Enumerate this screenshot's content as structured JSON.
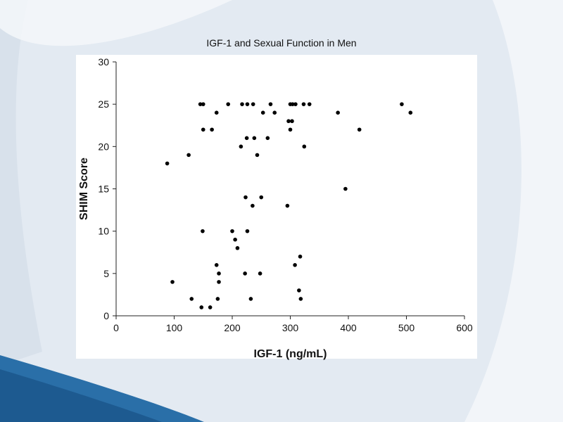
{
  "chart_data": {
    "type": "scatter",
    "title": "IGF-1 and Sexual Function in Men",
    "xlabel": "IGF-1 (ng/mL)",
    "ylabel": "SHIM Score",
    "xlim": [
      0,
      600
    ],
    "ylim": [
      0,
      30
    ],
    "xticks": [
      "0",
      "100",
      "200",
      "300",
      "400",
      "500",
      "600"
    ],
    "yticks": [
      "0",
      "5",
      "10",
      "15",
      "20",
      "25",
      "30"
    ],
    "grid": false,
    "points": [
      {
        "x": 145,
        "y": 25
      },
      {
        "x": 150,
        "y": 25
      },
      {
        "x": 193,
        "y": 25
      },
      {
        "x": 217,
        "y": 25
      },
      {
        "x": 226,
        "y": 25
      },
      {
        "x": 236,
        "y": 25
      },
      {
        "x": 266,
        "y": 25
      },
      {
        "x": 300,
        "y": 25
      },
      {
        "x": 304,
        "y": 25
      },
      {
        "x": 309,
        "y": 25
      },
      {
        "x": 323,
        "y": 25
      },
      {
        "x": 333,
        "y": 25
      },
      {
        "x": 492,
        "y": 25
      },
      {
        "x": 173,
        "y": 24
      },
      {
        "x": 253,
        "y": 24
      },
      {
        "x": 273,
        "y": 24
      },
      {
        "x": 382,
        "y": 24
      },
      {
        "x": 507,
        "y": 24
      },
      {
        "x": 297,
        "y": 23
      },
      {
        "x": 303,
        "y": 23
      },
      {
        "x": 150,
        "y": 22
      },
      {
        "x": 165,
        "y": 22
      },
      {
        "x": 300,
        "y": 22
      },
      {
        "x": 419,
        "y": 22
      },
      {
        "x": 225,
        "y": 21
      },
      {
        "x": 238,
        "y": 21
      },
      {
        "x": 261,
        "y": 21
      },
      {
        "x": 215,
        "y": 20
      },
      {
        "x": 324,
        "y": 20
      },
      {
        "x": 125,
        "y": 19
      },
      {
        "x": 243,
        "y": 19
      },
      {
        "x": 88,
        "y": 18
      },
      {
        "x": 395,
        "y": 15
      },
      {
        "x": 223,
        "y": 14
      },
      {
        "x": 250,
        "y": 14
      },
      {
        "x": 235,
        "y": 13
      },
      {
        "x": 295,
        "y": 13
      },
      {
        "x": 149,
        "y": 10
      },
      {
        "x": 200,
        "y": 10
      },
      {
        "x": 226,
        "y": 10
      },
      {
        "x": 205,
        "y": 9
      },
      {
        "x": 209,
        "y": 8
      },
      {
        "x": 317,
        "y": 7
      },
      {
        "x": 173,
        "y": 6
      },
      {
        "x": 308,
        "y": 6
      },
      {
        "x": 177,
        "y": 5
      },
      {
        "x": 222,
        "y": 5
      },
      {
        "x": 248,
        "y": 5
      },
      {
        "x": 97,
        "y": 4
      },
      {
        "x": 177,
        "y": 4
      },
      {
        "x": 315,
        "y": 3
      },
      {
        "x": 130,
        "y": 2
      },
      {
        "x": 175,
        "y": 2
      },
      {
        "x": 232,
        "y": 2
      },
      {
        "x": 318,
        "y": 2
      },
      {
        "x": 147,
        "y": 1
      },
      {
        "x": 162,
        "y": 1
      }
    ]
  }
}
